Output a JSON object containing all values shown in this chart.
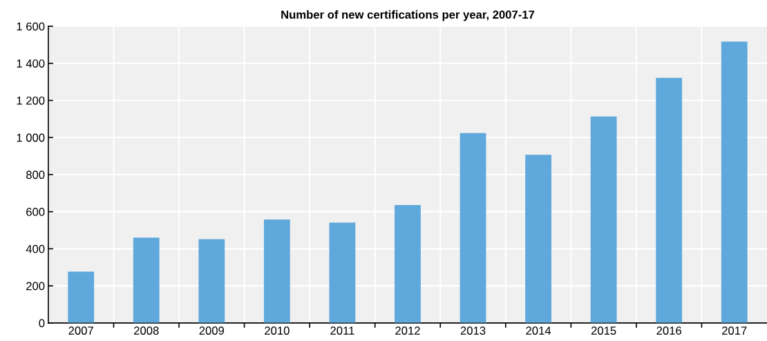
{
  "chart_data": {
    "type": "bar",
    "title": "Number of new certifications per year, 2007-17",
    "categories": [
      "2007",
      "2008",
      "2009",
      "2010",
      "2011",
      "2012",
      "2013",
      "2014",
      "2015",
      "2016",
      "2017"
    ],
    "values": [
      277,
      460,
      452,
      558,
      541,
      636,
      1024,
      907,
      1113,
      1322,
      1517
    ],
    "color": "#5fa8dc",
    "ylim": [
      0,
      1600
    ],
    "yticks": [
      0,
      200,
      400,
      600,
      800,
      {
        "value": 1000,
        "label": "1 000"
      },
      {
        "value": 1200,
        "label": "1 200"
      },
      {
        "value": 1400,
        "label": "1 400"
      },
      {
        "value": 1600,
        "label": "1 600"
      }
    ],
    "grid": true
  }
}
